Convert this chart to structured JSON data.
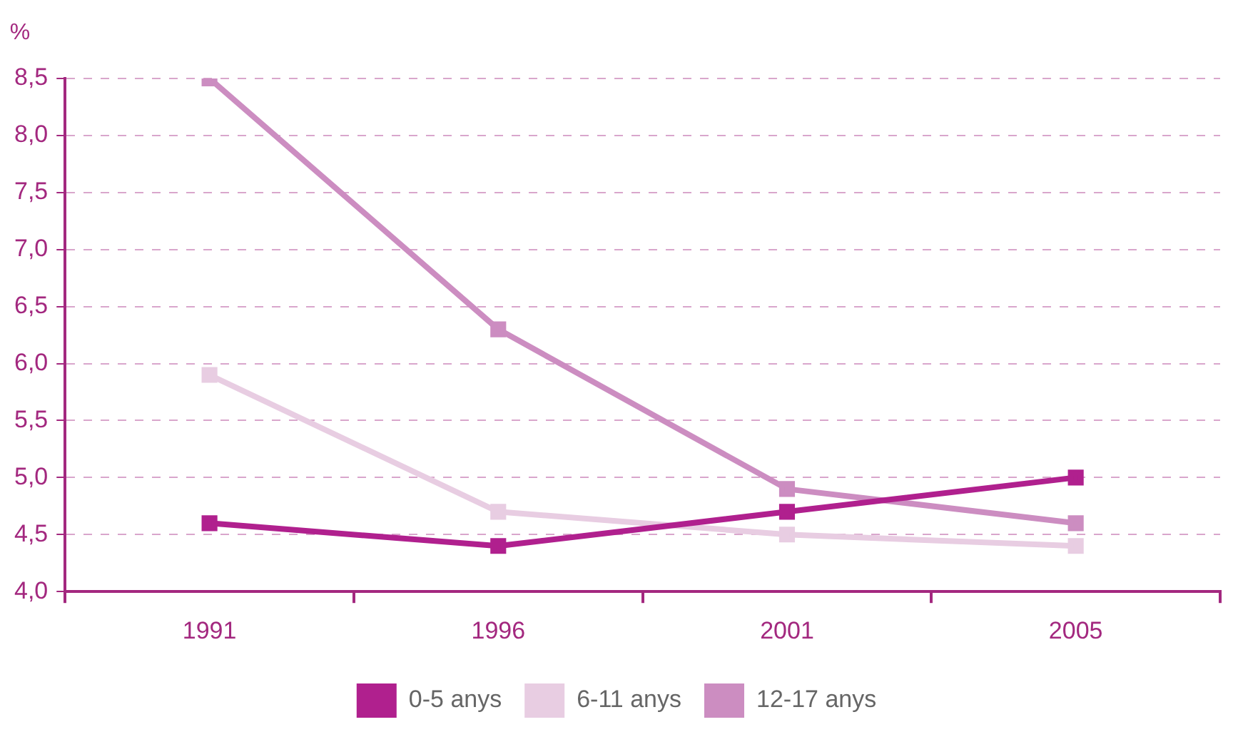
{
  "chart_data": {
    "type": "line",
    "ylabel": "%",
    "categories": [
      "1991",
      "1996",
      "2001",
      "2005"
    ],
    "series": [
      {
        "name": "0-5 anys",
        "color": "#b0208e",
        "values": [
          4.6,
          4.4,
          4.7,
          5.0
        ]
      },
      {
        "name": "6-11 anys",
        "color": "#e8cde2",
        "values": [
          5.9,
          4.7,
          4.5,
          4.4
        ]
      },
      {
        "name": "12-17 anys",
        "color": "#cc8dc1",
        "values": [
          8.5,
          6.3,
          4.9,
          4.6
        ]
      }
    ],
    "ylim": [
      4,
      8.5
    ],
    "yticks": [
      {
        "value": 4,
        "label": "4,0"
      },
      {
        "value": 4.5,
        "label": "4,5"
      },
      {
        "value": 5,
        "label": "5,0"
      },
      {
        "value": 5.5,
        "label": "5,5"
      },
      {
        "value": 6,
        "label": "6,0"
      },
      {
        "value": 6.5,
        "label": "6,5"
      },
      {
        "value": 7,
        "label": "7,0"
      },
      {
        "value": 7.5,
        "label": "7,5"
      },
      {
        "value": 8,
        "label": "8,0"
      },
      {
        "value": 8.5,
        "label": "8,5"
      }
    ],
    "grid": "y",
    "legend": "bottom",
    "marker": "square",
    "line_style": "solid"
  }
}
